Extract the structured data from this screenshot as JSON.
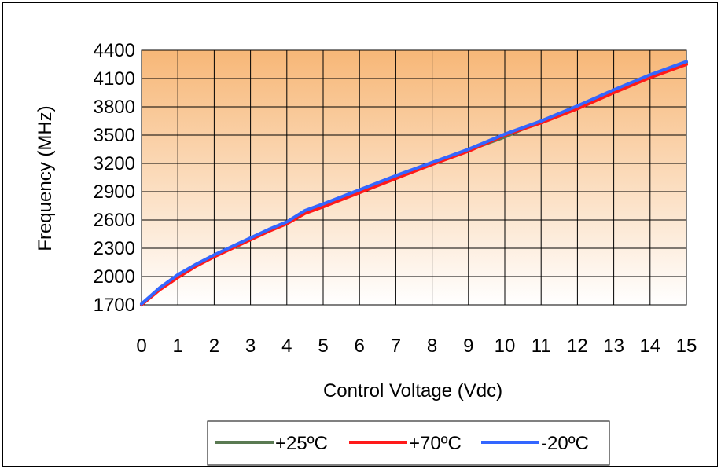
{
  "chart_data": {
    "type": "line",
    "xlabel": "Control Voltage (Vdc)",
    "ylabel": "Frequency (MHz)",
    "xlim": [
      0,
      15
    ],
    "ylim": [
      1700,
      4400
    ],
    "xticks": [
      "0",
      "1",
      "2",
      "3",
      "4",
      "5",
      "6",
      "7",
      "8",
      "9",
      "10",
      "11",
      "12",
      "13",
      "14",
      "15"
    ],
    "yticks": [
      "1700",
      "2000",
      "2300",
      "2600",
      "2900",
      "3200",
      "3500",
      "3800",
      "4100",
      "4400"
    ],
    "grid": true,
    "legend_position": "bottom",
    "plot_background": {
      "top": "#f7b777",
      "bottom": "#ffffff"
    },
    "series": [
      {
        "name": "+25ºC",
        "color": "#5a7a52",
        "x": [
          0,
          0.5,
          1,
          1.5,
          2,
          2.5,
          3,
          3.5,
          4,
          4.5,
          5,
          6,
          7,
          8,
          9,
          10,
          11,
          12,
          13,
          14,
          15
        ],
        "y": [
          1700,
          1880,
          2010,
          2120,
          2220,
          2310,
          2400,
          2490,
          2570,
          2690,
          2760,
          2910,
          3060,
          3200,
          3340,
          3480,
          3650,
          3800,
          3970,
          4130,
          4270
        ]
      },
      {
        "name": "+70ºC",
        "color": "#ff1a1a",
        "x": [
          0,
          0.5,
          1,
          1.5,
          2,
          2.5,
          3,
          3.5,
          4,
          4.5,
          5,
          6,
          7,
          8,
          9,
          10,
          11,
          12,
          13,
          14,
          15
        ],
        "y": [
          1700,
          1860,
          1990,
          2110,
          2210,
          2300,
          2390,
          2480,
          2560,
          2670,
          2740,
          2890,
          3040,
          3190,
          3330,
          3500,
          3630,
          3780,
          3950,
          4110,
          4250
        ]
      },
      {
        "name": "-20ºC",
        "color": "#3366ff",
        "x": [
          0,
          0.5,
          1,
          1.5,
          2,
          2.5,
          3,
          3.5,
          4,
          4.5,
          5,
          6,
          7,
          8,
          9,
          10,
          11,
          12,
          13,
          14,
          15
        ],
        "y": [
          1710,
          1880,
          2020,
          2130,
          2230,
          2320,
          2410,
          2500,
          2580,
          2700,
          2770,
          2920,
          3070,
          3210,
          3350,
          3510,
          3650,
          3810,
          3980,
          4140,
          4280
        ]
      }
    ]
  }
}
